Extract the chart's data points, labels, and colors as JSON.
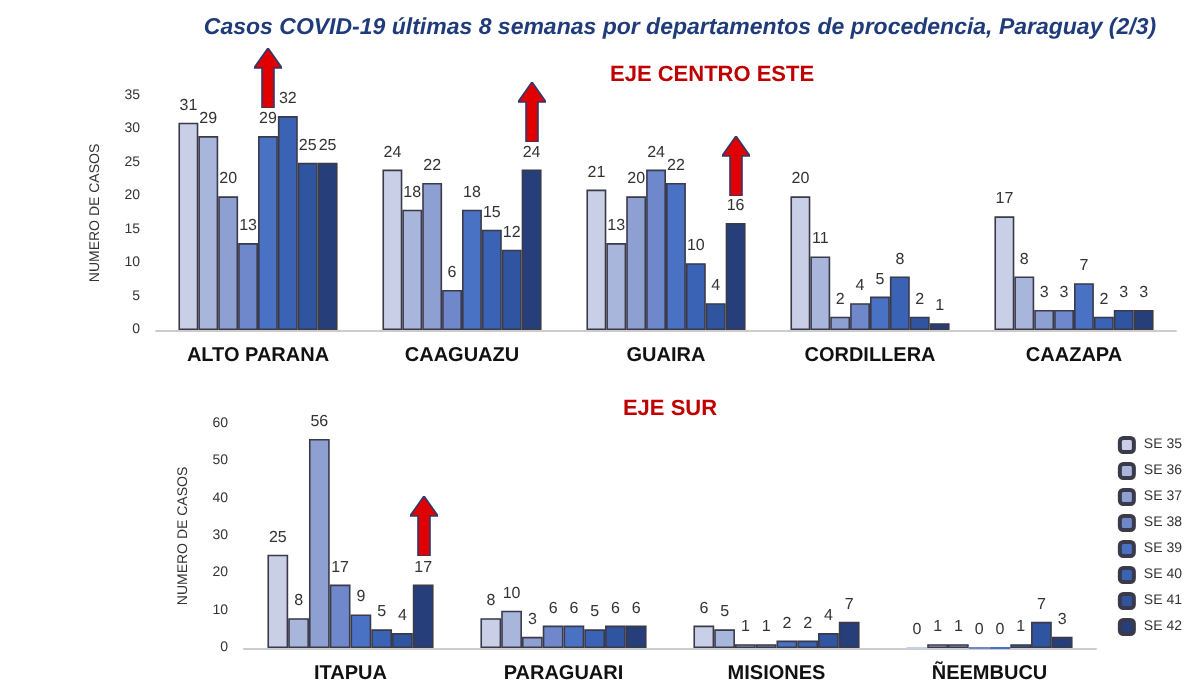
{
  "chart_data": [
    {
      "type": "bar",
      "title": "Casos COVID-19 últimas 8 semanas por departamentos de procedencia, Paraguay (2/3)",
      "subtitle": "EJE CENTRO ESTE",
      "ylabel": "NUMERO DE CASOS",
      "categories": [
        "ALTO PARANA",
        "CAAGUAZU",
        "GUAIRA",
        "CORDILLERA",
        "CAAZAPA"
      ],
      "series": [
        {
          "color": "#c8cfe6",
          "values": [
            31,
            24,
            21,
            20,
            17
          ]
        },
        {
          "color": "#a9b6dc",
          "values": [
            29,
            18,
            13,
            11,
            8
          ]
        },
        {
          "color": "#8ea0d2",
          "values": [
            20,
            22,
            20,
            2,
            3
          ]
        },
        {
          "color": "#6f88cc",
          "values": [
            13,
            6,
            24,
            4,
            3
          ]
        },
        {
          "color": "#4a72c4",
          "values": [
            29,
            18,
            22,
            5,
            7
          ]
        },
        {
          "color": "#3b63b5",
          "values": [
            32,
            15,
            10,
            8,
            2
          ]
        },
        {
          "color": "#2f55a0",
          "values": [
            25,
            12,
            4,
            2,
            3
          ]
        },
        {
          "color": "#263f7a",
          "values": [
            25,
            24,
            16,
            1,
            3
          ]
        }
      ],
      "ylim": [
        0,
        35
      ],
      "yticks": [
        0,
        5,
        10,
        15,
        20,
        25,
        30,
        35
      ],
      "grid": false,
      "legend": false,
      "data_labels": true
    },
    {
      "type": "bar",
      "title": "EJE SUR",
      "ylabel": "NUMERO DE CASOS",
      "categories": [
        "ITAPUA",
        "PARAGUARI",
        "MISIONES",
        "ÑEEMBUCU"
      ],
      "series": [
        {
          "name": "SE 35",
          "color": "#c8cfe6",
          "values": [
            25,
            8,
            6,
            0
          ]
        },
        {
          "name": "SE 36",
          "color": "#a9b6dc",
          "values": [
            8,
            10,
            5,
            1
          ]
        },
        {
          "name": "SE 37",
          "color": "#8ea0d2",
          "values": [
            56,
            3,
            1,
            1
          ]
        },
        {
          "name": "SE 38",
          "color": "#6f88cc",
          "values": [
            17,
            6,
            1,
            0
          ]
        },
        {
          "name": "SE 39",
          "color": "#4a72c4",
          "values": [
            9,
            6,
            2,
            0
          ]
        },
        {
          "name": "SE 40",
          "color": "#3b63b5",
          "values": [
            5,
            5,
            2,
            1
          ]
        },
        {
          "name": "SE 41",
          "color": "#2f55a0",
          "values": [
            4,
            6,
            4,
            7
          ]
        },
        {
          "name": "SE 42",
          "color": "#263f7a",
          "values": [
            17,
            6,
            7,
            3
          ]
        }
      ],
      "ylim": [
        0,
        60
      ],
      "yticks": [
        0,
        10,
        20,
        30,
        40,
        50,
        60
      ],
      "grid": false,
      "legend": "right",
      "data_labels": true
    }
  ]
}
